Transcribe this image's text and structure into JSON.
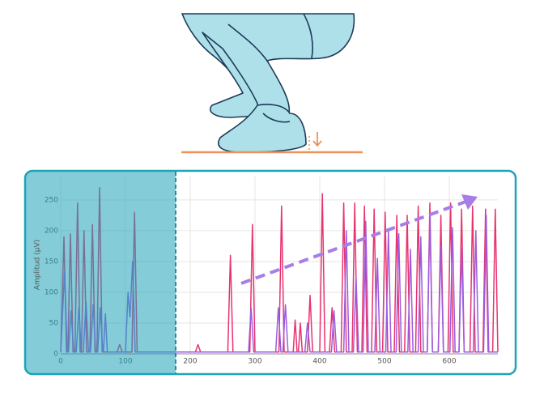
{
  "chart_data": {
    "type": "line",
    "y_label": "Amplitud (μV)",
    "xlim": [
      0,
      675
    ],
    "ylim": [
      0,
      288
    ],
    "xticks": [
      0,
      100,
      200,
      300,
      400,
      500,
      600
    ],
    "yticks": [
      0,
      50,
      100,
      150,
      200,
      250
    ],
    "grid": true,
    "series": [
      {
        "color": "#e8336e",
        "x": [
          0,
          5,
          9,
          11,
          15,
          19,
          22,
          26,
          30,
          32,
          36,
          40,
          45,
          49,
          53,
          56,
          60,
          64,
          87,
          91,
          95,
          110,
          114,
          118,
          208,
          212,
          216,
          258,
          262,
          266,
          292,
          296,
          300,
          337,
          341,
          345,
          359,
          362,
          365,
          367,
          370,
          373,
          381,
          385,
          389,
          400,
          404,
          408,
          415,
          419,
          423,
          433,
          437,
          441,
          450,
          454,
          458,
          465,
          469,
          473,
          480,
          484,
          488,
          497,
          501,
          505,
          515,
          519,
          523,
          531,
          535,
          539,
          548,
          552,
          556,
          566,
          570,
          574,
          583,
          587,
          591,
          598,
          602,
          606,
          615,
          619,
          623,
          632,
          636,
          640,
          652,
          656,
          660,
          667,
          671,
          675
        ],
        "values": [
          3,
          190,
          3,
          3,
          195,
          3,
          3,
          245,
          3,
          3,
          200,
          3,
          3,
          210,
          3,
          3,
          270,
          3,
          3,
          15,
          3,
          3,
          230,
          3,
          3,
          15,
          3,
          3,
          160,
          3,
          3,
          210,
          3,
          3,
          240,
          3,
          3,
          55,
          3,
          3,
          50,
          3,
          3,
          95,
          3,
          3,
          260,
          3,
          3,
          75,
          3,
          3,
          245,
          3,
          3,
          245,
          3,
          3,
          240,
          3,
          3,
          235,
          3,
          3,
          230,
          3,
          3,
          225,
          3,
          3,
          225,
          3,
          3,
          240,
          3,
          3,
          245,
          3,
          3,
          225,
          3,
          3,
          245,
          3,
          3,
          235,
          3,
          3,
          240,
          3,
          3,
          235,
          3,
          3,
          235,
          3
        ]
      },
      {
        "color": "#9b5de0",
        "x": [
          0,
          6,
          10,
          12,
          16,
          20,
          24,
          28,
          32,
          35,
          39,
          43,
          46,
          50,
          54,
          57,
          61,
          65,
          66,
          69,
          72,
          100,
          104,
          107,
          111,
          115,
          290,
          294,
          298,
          332,
          336,
          340,
          343,
          347,
          351,
          377,
          381,
          385,
          418,
          422,
          426,
          437,
          441,
          445,
          452,
          456,
          460,
          467,
          471,
          475,
          485,
          489,
          493,
          502,
          506,
          510,
          518,
          522,
          526,
          536,
          540,
          544,
          552,
          556,
          560,
          566,
          570,
          574,
          583,
          587,
          591,
          601,
          605,
          609,
          615,
          619,
          623,
          637,
          641,
          645,
          653,
          657,
          661,
          675
        ],
        "values": [
          3,
          135,
          3,
          3,
          70,
          3,
          3,
          75,
          3,
          3,
          85,
          3,
          3,
          80,
          3,
          3,
          75,
          3,
          3,
          65,
          3,
          3,
          100,
          60,
          150,
          3,
          3,
          75,
          3,
          3,
          75,
          3,
          3,
          80,
          3,
          3,
          50,
          3,
          3,
          70,
          3,
          3,
          200,
          3,
          3,
          125,
          3,
          3,
          215,
          3,
          3,
          155,
          3,
          3,
          200,
          3,
          3,
          195,
          3,
          3,
          170,
          3,
          3,
          190,
          3,
          3,
          225,
          3,
          3,
          175,
          3,
          3,
          205,
          3,
          3,
          170,
          3,
          3,
          200,
          3,
          3,
          225,
          3,
          3
        ]
      }
    ]
  }
}
